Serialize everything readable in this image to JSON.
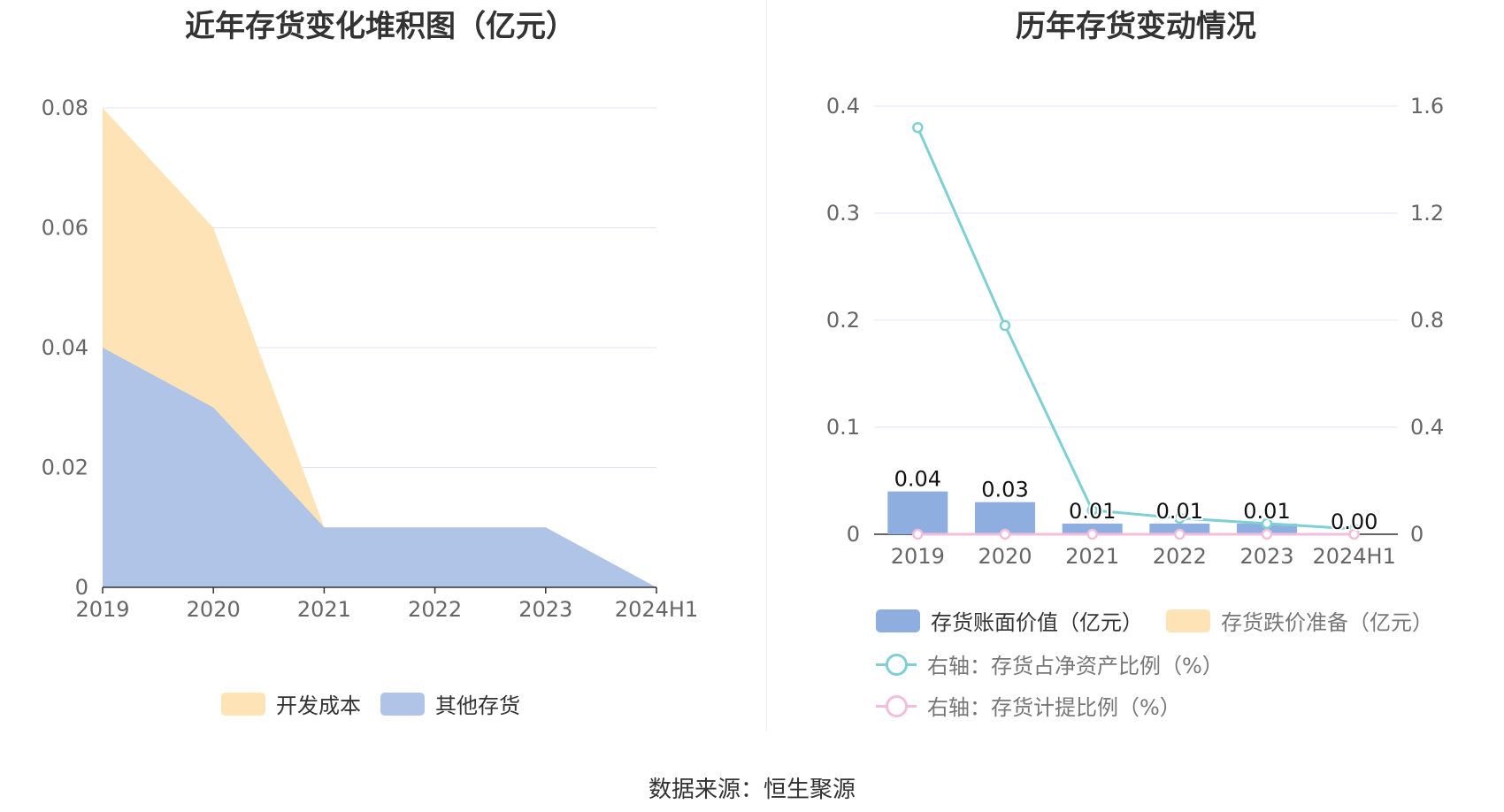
{
  "left_title": "近年存货变化堆积图（亿元）",
  "right_title": "历年存货变动情况",
  "source": "数据来源：恒生聚源",
  "colors": {
    "kaifa": "#fde3b5",
    "other": "#afc4e6",
    "bar_book": "#8eaedf",
    "bar_reserve": "#fde3b5",
    "line_ratio": "#7fd0d4",
    "line_provision": "#f2bedc",
    "grid": "#e0e3f5",
    "axis_text": "#666666"
  },
  "chart_data": [
    {
      "type": "area",
      "stacked": true,
      "title": "近年存货变化堆积图（亿元）",
      "categories": [
        "2019",
        "2020",
        "2021",
        "2022",
        "2023",
        "2024H1"
      ],
      "ylim": [
        0,
        0.08
      ],
      "yticks": [
        "0",
        "0.02",
        "0.04",
        "0.06",
        "0.08"
      ],
      "series": [
        {
          "name": "其他存货",
          "values": [
            0.04,
            0.03,
            0.01,
            0.01,
            0.01,
            0.0
          ]
        },
        {
          "name": "开发成本",
          "values": [
            0.04,
            0.03,
            0.0,
            0.0,
            0.0,
            0.0
          ]
        }
      ],
      "legend": [
        "开发成本",
        "其他存货"
      ],
      "legend_position": "bottom"
    },
    {
      "type": "bar",
      "title": "历年存货变动情况",
      "categories": [
        "2019",
        "2020",
        "2021",
        "2022",
        "2023",
        "2024H1"
      ],
      "ylim": [
        0,
        0.4
      ],
      "yticks": [
        "0",
        "0.1",
        "0.2",
        "0.3",
        "0.4"
      ],
      "y2lim": [
        0,
        1.6
      ],
      "y2ticks": [
        "0",
        "0.4",
        "0.8",
        "1.2",
        "1.6"
      ],
      "series": [
        {
          "name": "存货账面价值（亿元）",
          "type": "bar",
          "axis": "left",
          "values": [
            0.04,
            0.03,
            0.01,
            0.01,
            0.01,
            0.0
          ],
          "labels": [
            "0.04",
            "0.03",
            "0.01",
            "0.01",
            "0.01",
            "0.00"
          ]
        },
        {
          "name": "存货跌价准备（亿元）",
          "type": "bar",
          "axis": "left",
          "values": [
            0,
            0,
            0,
            0,
            0,
            0
          ]
        },
        {
          "name": "右轴：存货占净资产比例（%）",
          "type": "line",
          "axis": "right",
          "values": [
            1.52,
            0.78,
            0.09,
            0.06,
            0.04,
            0.02
          ]
        },
        {
          "name": "右轴：存货计提比例（%）",
          "type": "line",
          "axis": "right",
          "values": [
            0,
            0,
            0,
            0,
            0,
            0
          ]
        }
      ],
      "legend_position": "bottom"
    }
  ]
}
